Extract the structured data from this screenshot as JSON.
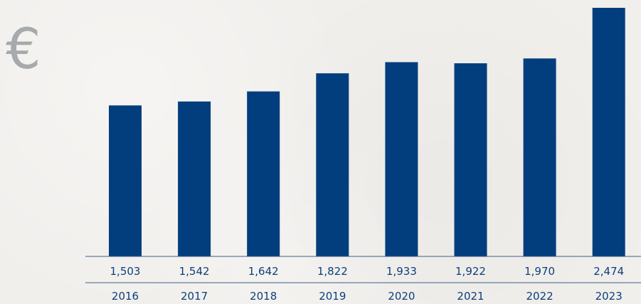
{
  "currency_symbol": "€",
  "colors": {
    "bar": "#023e7d",
    "rule": "#3d5f86",
    "text": "#0d3f7a",
    "currency": "#a7a9ac"
  },
  "chart_data": {
    "type": "bar",
    "categories": [
      "2016",
      "2017",
      "2018",
      "2019",
      "2020",
      "2021",
      "2022",
      "2023"
    ],
    "values": [
      1503,
      1542,
      1642,
      1822,
      1933,
      1922,
      1970,
      2474
    ],
    "value_labels": [
      "1,503",
      "1,542",
      "1,642",
      "1,822",
      "1,933",
      "1,922",
      "1,970",
      "2,474"
    ],
    "title": "",
    "xlabel": "",
    "ylabel": "",
    "ylim": [
      0,
      2474
    ],
    "grid": false,
    "legend": "none"
  }
}
